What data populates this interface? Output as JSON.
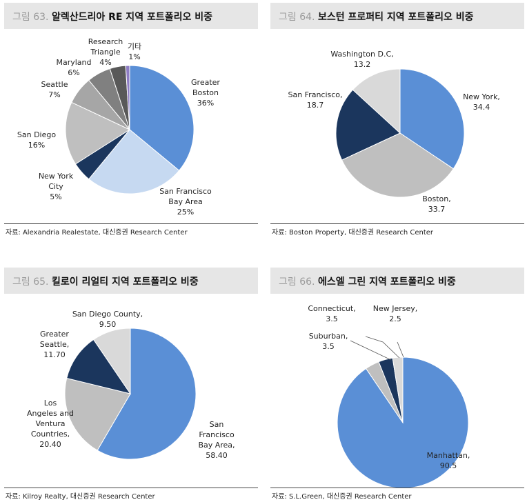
{
  "panels": [
    {
      "fig_num": "그림 63.",
      "fig_title": "알렉산드리아 RE 지역 포트폴리오 비중",
      "source": "자료: Alexandria Realestate, 대신증권 Research Center",
      "chart_data": {
        "type": "pie",
        "values": [
          36,
          25,
          5,
          16,
          7,
          6,
          4,
          1
        ],
        "labels": [
          [
            "Greater",
            "Boston",
            "36%"
          ],
          [
            "San Francisco",
            "Bay Area",
            "25%"
          ],
          [
            "New York",
            "City",
            "5%"
          ],
          [
            "San Diego",
            "16%"
          ],
          [
            "Seattle",
            "7%"
          ],
          [
            "Maryland",
            "6%"
          ],
          [
            "Research",
            "Triangle",
            "4%"
          ],
          [
            "기타",
            "1%"
          ]
        ],
        "colors": [
          "#5a8fd6",
          "#c6d9f1",
          "#1b365d",
          "#bfbfbf",
          "#a6a6a6",
          "#808080",
          "#595959",
          "#8e7cc3"
        ]
      }
    },
    {
      "fig_num": "그림 64.",
      "fig_title": "보스턴 프로퍼티 지역 포트폴리오 비중",
      "source": "자료: Boston Property, 대신증권 Research Center",
      "chart_data": {
        "type": "pie",
        "values": [
          34.4,
          33.7,
          18.7,
          13.2
        ],
        "labels": [
          [
            "New York,",
            "34.4"
          ],
          [
            "Boston,",
            "33.7"
          ],
          [
            "San Francisco,",
            "18.7"
          ],
          [
            "Washington D.C,",
            "13.2"
          ]
        ],
        "colors": [
          "#5a8fd6",
          "#bfbfbf",
          "#1b365d",
          "#d9d9d9"
        ]
      }
    },
    {
      "fig_num": "그림 65.",
      "fig_title": "킬로이 리얼티 지역 포트폴리오 비중",
      "source": "자료: Kilroy Realty, 대신증권 Research Center",
      "chart_data": {
        "type": "pie",
        "values": [
          58.4,
          20.4,
          11.7,
          9.5
        ],
        "labels": [
          [
            "San",
            "Francisco",
            "Bay Area,",
            "58.40"
          ],
          [
            "Los",
            "Angeles and",
            "Ventura",
            "Countries,",
            "20.40"
          ],
          [
            "Greater",
            "Seattle,",
            "11.70"
          ],
          [
            "San Diego County,",
            "9.50"
          ]
        ],
        "colors": [
          "#5a8fd6",
          "#bfbfbf",
          "#1b365d",
          "#d9d9d9"
        ]
      }
    },
    {
      "fig_num": "그림 66.",
      "fig_title": "에스엘 그린 지역 포트폴리오 비중",
      "source": "자료: S.L.Green, 대신증권 Research Center",
      "chart_data": {
        "type": "pie",
        "values": [
          90.5,
          3.5,
          3.5,
          2.5
        ],
        "labels": [
          [
            "Manhattan,",
            "90.5"
          ],
          [
            "Suburban,",
            "3.5"
          ],
          [
            "Connecticut,",
            "3.5"
          ],
          [
            "New Jersey,",
            "2.5"
          ]
        ],
        "colors": [
          "#5a8fd6",
          "#bfbfbf",
          "#1b365d",
          "#d9d9d9"
        ]
      }
    }
  ]
}
